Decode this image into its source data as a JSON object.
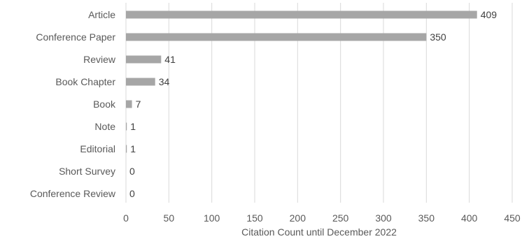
{
  "chart_data": {
    "type": "bar",
    "orientation": "horizontal",
    "categories": [
      "Article",
      "Conference Paper",
      "Review",
      "Book Chapter",
      "Book",
      "Note",
      "Editorial",
      "Short Survey",
      "Conference Review"
    ],
    "values": [
      409,
      350,
      41,
      34,
      7,
      1,
      1,
      0,
      0
    ],
    "xlabel": "Citation Count until December 2022",
    "xlim": [
      0,
      450
    ],
    "xticks": [
      0,
      50,
      100,
      150,
      200,
      250,
      300,
      350,
      400,
      450
    ],
    "grid": true,
    "bar_color": "#a6a6a6",
    "grid_color": "#d9d9d9"
  }
}
